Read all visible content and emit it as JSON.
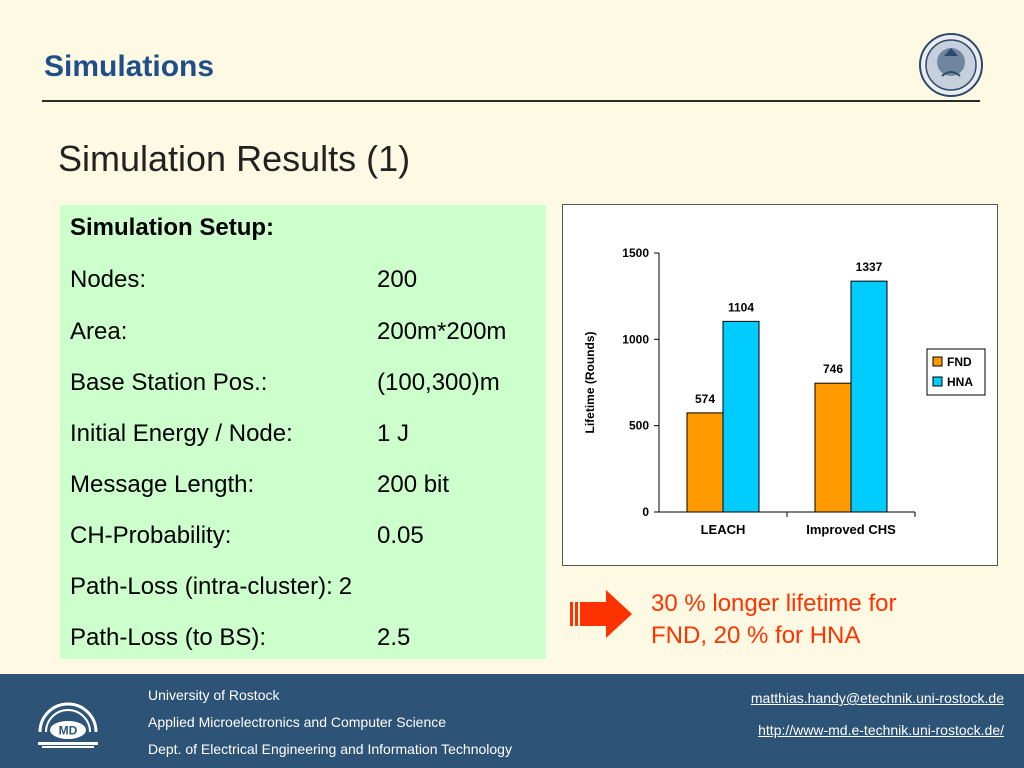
{
  "header": {
    "title": "Simulations"
  },
  "slide_title": "Simulation Results (1)",
  "setup": {
    "heading": "Simulation Setup:",
    "rows": [
      {
        "label": "Nodes:",
        "value": "200"
      },
      {
        "label": "Area:",
        "value": "200m*200m"
      },
      {
        "label": "Base Station Pos.:",
        "value": "(100,300)m"
      },
      {
        "label": "Initial Energy / Node:",
        "value": "1 J"
      },
      {
        "label": "Message Length:",
        "value": "200 bit"
      },
      {
        "label": "CH-Probability:",
        "value": "0.05"
      },
      {
        "label": "Path-Loss (intra-cluster):",
        "value": "2"
      },
      {
        "label": "Path-Loss (to BS):",
        "value": "2.5"
      }
    ]
  },
  "chart_data": {
    "type": "bar",
    "categories": [
      "LEACH",
      "Improved CHS"
    ],
    "series": [
      {
        "name": "FND",
        "values": [
          574,
          746
        ],
        "color": "#ff9900"
      },
      {
        "name": "HNA",
        "values": [
          1104,
          1337
        ],
        "color": "#00ccff"
      }
    ],
    "ylabel": "Lifetime (Rounds)",
    "ylim": [
      0,
      1500
    ],
    "yticks": [
      0,
      500,
      1000,
      1500
    ],
    "legend_position": "right",
    "grid": false
  },
  "note": {
    "line1": "30 % longer lifetime for",
    "line2": "FND, 20 % for HNA"
  },
  "footer": {
    "lines": [
      "University of Rostock",
      "Applied Microelectronics and Computer Science",
      "Dept. of Electrical Engineering and Information Technology"
    ],
    "email": "matthias.handy@etechnik.uni-rostock.de",
    "url": "http://www-md.e-technik.uni-rostock.de/",
    "logo_text": "MD"
  },
  "colors": {
    "title": "#1f4e8a",
    "setup_bg": "#ccffcc",
    "note": "#ff3300",
    "footer_bg": "#2d5376"
  }
}
